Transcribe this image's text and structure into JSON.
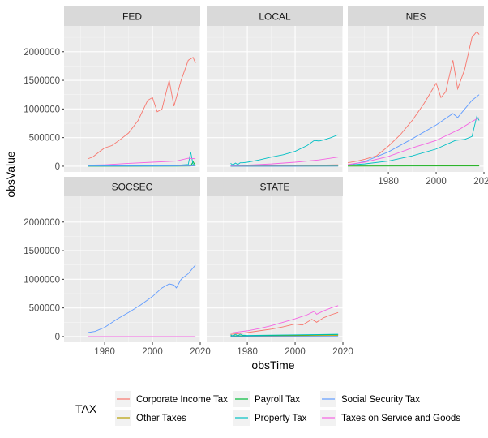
{
  "chart_data": {
    "type": "line",
    "xlabel": "obsTime",
    "ylabel": "obsValue",
    "xlim": [
      1963,
      2020
    ],
    "ylim": [
      -100000,
      2450000
    ],
    "x_ticks": [
      1980,
      2000,
      2020
    ],
    "y_ticks": [
      0,
      500000,
      1000000,
      1500000,
      2000000
    ],
    "x_tick_labels": [
      "1980",
      "2000",
      "2020"
    ],
    "y_tick_labels": [
      "0",
      "500000",
      "1000000",
      "1500000",
      "2000000"
    ],
    "grid": true,
    "legend": {
      "title": "TAX",
      "position": "bottom",
      "entries": [
        {
          "label": "Corporate Income Tax",
          "color": "#F8766D"
        },
        {
          "label": "Other Taxes",
          "color": "#B79F00"
        },
        {
          "label": "Payroll Tax",
          "color": "#00BA38"
        },
        {
          "label": "Property Tax",
          "color": "#00BFC4"
        },
        {
          "label": "Social Security Tax",
          "color": "#619CFF"
        },
        {
          "label": "Taxes on Service and Goods",
          "color": "#F564E3"
        }
      ]
    },
    "panels": [
      {
        "name": "FED",
        "series": [
          {
            "tax": "Corporate Income Tax",
            "x": [
              1973,
              1975,
              1978,
              1980,
              1983,
              1986,
              1990,
              1994,
              1998,
              2000,
              2002,
              2004,
              2007,
              2009,
              2012,
              2015,
              2017,
              2018
            ],
            "y": [
              130000,
              160000,
              260000,
              320000,
              360000,
              450000,
              580000,
              800000,
              1150000,
              1200000,
              950000,
              1000000,
              1500000,
              1050000,
              1500000,
              1850000,
              1900000,
              1800000
            ]
          },
          {
            "tax": "Other Taxes",
            "x": [
              1973,
              1985,
              2000,
              2010,
              2018
            ],
            "y": [
              5000,
              5000,
              8000,
              10000,
              15000
            ]
          },
          {
            "tax": "Payroll Tax",
            "x": [
              1973,
              1990,
              2010,
              2016,
              2017,
              2018
            ],
            "y": [
              0,
              0,
              2000,
              3000,
              80000,
              10000
            ]
          },
          {
            "tax": "Property Tax",
            "x": [
              1973,
              1990,
              2010,
              2015,
              2016,
              2017,
              2018
            ],
            "y": [
              5000,
              10000,
              15000,
              30000,
              250000,
              30000,
              20000
            ]
          },
          {
            "tax": "Social Security Tax",
            "x": [
              1973,
              2000,
              2018
            ],
            "y": [
              3000,
              4000,
              6000
            ]
          },
          {
            "tax": "Taxes on Service and Goods",
            "x": [
              1973,
              1980,
              1990,
              2000,
              2010,
              2015,
              2018
            ],
            "y": [
              20000,
              25000,
              50000,
              70000,
              90000,
              140000,
              130000
            ]
          }
        ]
      },
      {
        "name": "LOCAL",
        "series": [
          {
            "tax": "Corporate Income Tax",
            "x": [
              1973,
              1990,
              2005,
              2018
            ],
            "y": [
              5000,
              10000,
              15000,
              25000
            ]
          },
          {
            "tax": "Other Taxes",
            "x": [
              1973,
              1990,
              2018
            ],
            "y": [
              2000,
              4000,
              8000
            ]
          },
          {
            "tax": "Payroll Tax",
            "x": [
              1973,
              2000,
              2018
            ],
            "y": [
              1000,
              2000,
              3000
            ]
          },
          {
            "tax": "Property Tax",
            "x": [
              1973,
              1974,
              1975,
              1976,
              1977,
              1978,
              1980,
              1985,
              1990,
              1995,
              2000,
              2005,
              2008,
              2010,
              2012,
              2015,
              2018
            ],
            "y": [
              50000,
              20000,
              55000,
              30000,
              60000,
              60000,
              70000,
              110000,
              160000,
              200000,
              260000,
              360000,
              450000,
              440000,
              460000,
              500000,
              550000
            ]
          },
          {
            "tax": "Social Security Tax",
            "x": [
              1973,
              2000,
              2018
            ],
            "y": [
              1000,
              1000,
              2000
            ]
          },
          {
            "tax": "Taxes on Service and Goods",
            "x": [
              1973,
              1980,
              1990,
              2000,
              2010,
              2018
            ],
            "y": [
              15000,
              20000,
              40000,
              70000,
              110000,
              160000
            ]
          }
        ]
      },
      {
        "name": "NES",
        "series": [
          {
            "tax": "Corporate Income Tax",
            "x": [
              1963,
              1967,
              1970,
              1975,
              1980,
              1985,
              1990,
              1995,
              2000,
              2002,
              2004,
              2007,
              2009,
              2012,
              2015,
              2017,
              2018
            ],
            "y": [
              60000,
              90000,
              120000,
              180000,
              350000,
              550000,
              800000,
              1100000,
              1450000,
              1200000,
              1300000,
              1850000,
              1350000,
              1700000,
              2250000,
              2350000,
              2300000
            ]
          },
          {
            "tax": "Other Taxes",
            "x": [
              1963,
              1990,
              2018
            ],
            "y": [
              3000,
              5000,
              8000
            ]
          },
          {
            "tax": "Payroll Tax",
            "x": [
              1963,
              1990,
              2018
            ],
            "y": [
              2000,
              3000,
              4000
            ]
          },
          {
            "tax": "Property Tax",
            "x": [
              1963,
              1970,
              1980,
              1990,
              2000,
              2008,
              2012,
              2015,
              2017,
              2018
            ],
            "y": [
              20000,
              40000,
              90000,
              180000,
              300000,
              450000,
              470000,
              520000,
              870000,
              800000
            ]
          },
          {
            "tax": "Social Security Tax",
            "x": [
              1963,
              1970,
              1980,
              1990,
              2000,
              2007,
              2009,
              2012,
              2015,
              2018
            ],
            "y": [
              20000,
              80000,
              250000,
              480000,
              720000,
              920000,
              850000,
              1000000,
              1150000,
              1250000
            ]
          },
          {
            "tax": "Taxes on Service and Goods",
            "x": [
              1963,
              1970,
              1980,
              1990,
              2000,
              2005,
              2010,
              2015,
              2018
            ],
            "y": [
              30000,
              70000,
              170000,
              320000,
              450000,
              550000,
              650000,
              780000,
              850000
            ]
          }
        ]
      },
      {
        "name": "SOCSEC",
        "series": [
          {
            "tax": "Social Security Tax",
            "x": [
              1973,
              1976,
              1980,
              1985,
              1990,
              1995,
              2000,
              2004,
              2007,
              2009,
              2010,
              2012,
              2015,
              2018
            ],
            "y": [
              70000,
              90000,
              160000,
              300000,
              420000,
              550000,
              700000,
              850000,
              920000,
              900000,
              850000,
              1000000,
              1100000,
              1250000
            ]
          },
          {
            "tax": "Taxes on Service and Goods",
            "x": [
              1973,
              2018
            ],
            "y": [
              0,
              0
            ]
          }
        ]
      },
      {
        "name": "STATE",
        "series": [
          {
            "tax": "Corporate Income Tax",
            "x": [
              1973,
              1976,
              1980,
              1985,
              1990,
              1995,
              2000,
              2003,
              2007,
              2009,
              2012,
              2015,
              2018
            ],
            "y": [
              40000,
              50000,
              70000,
              100000,
              130000,
              170000,
              220000,
              200000,
              300000,
              250000,
              330000,
              380000,
              420000
            ]
          },
          {
            "tax": "Other Taxes",
            "x": [
              1973,
              2000,
              2018
            ],
            "y": [
              10000,
              15000,
              20000
            ]
          },
          {
            "tax": "Payroll Tax",
            "x": [
              1973,
              1990,
              2018
            ],
            "y": [
              10000,
              20000,
              35000
            ]
          },
          {
            "tax": "Property Tax",
            "x": [
              1973,
              1974,
              1975,
              1976,
              1977,
              1978,
              1980,
              1990,
              2000,
              2010,
              2018
            ],
            "y": [
              30000,
              10000,
              40000,
              15000,
              40000,
              25000,
              20000,
              25000,
              30000,
              35000,
              40000
            ]
          },
          {
            "tax": "Social Security Tax",
            "x": [
              1973,
              2000,
              2018
            ],
            "y": [
              2000,
              3000,
              4000
            ]
          },
          {
            "tax": "Taxes on Service and Goods",
            "x": [
              1973,
              1976,
              1980,
              1985,
              1990,
              1995,
              2000,
              2005,
              2008,
              2009,
              2012,
              2015,
              2018
            ],
            "y": [
              60000,
              80000,
              100000,
              140000,
              190000,
              250000,
              310000,
              380000,
              440000,
              390000,
              450000,
              500000,
              540000
            ]
          }
        ]
      }
    ]
  }
}
